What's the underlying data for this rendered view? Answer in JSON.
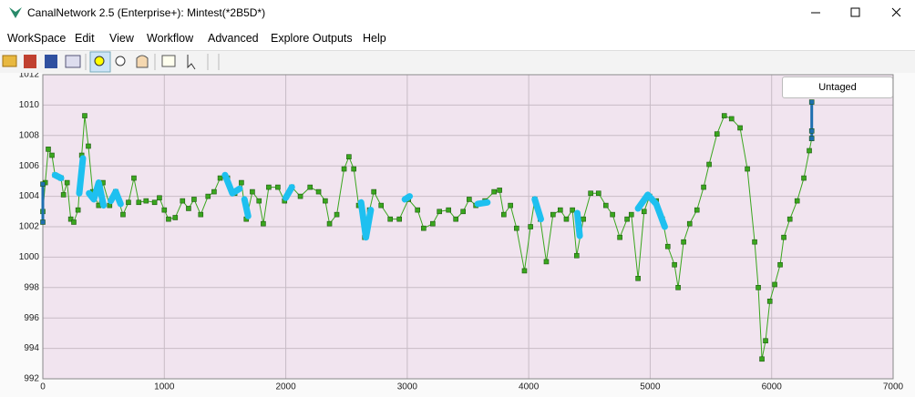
{
  "window": {
    "title": "CanalNetwork 2.5  (Enterprise+): Mintest(*2B5D*)"
  },
  "menu": [
    "WorkSpace",
    "Edit",
    "View",
    "Workflow",
    "Advanced",
    "Explore Outputs",
    "Help"
  ],
  "button": "Untaged",
  "chart_data": {
    "type": "line",
    "xlim": [
      0,
      7000
    ],
    "ylim": [
      992,
      1012
    ],
    "xticks": [
      0,
      1000,
      2000,
      3000,
      4000,
      5000,
      6000,
      7000
    ],
    "yticks": [
      992,
      994,
      996,
      998,
      1000,
      1002,
      1004,
      1006,
      1008,
      1010,
      1012
    ],
    "grid": true,
    "series": [
      {
        "color": "#3aa61e",
        "marker": "square",
        "x": [
          0,
          20,
          45,
          75,
          100,
          150,
          170,
          200,
          230,
          255,
          290,
          320,
          345,
          375,
          410,
          460,
          495,
          550,
          600,
          660,
          705,
          750,
          790,
          850,
          920,
          960,
          1000,
          1035,
          1090,
          1150,
          1200,
          1245,
          1300,
          1360,
          1410,
          1460,
          1520,
          1580,
          1635,
          1675,
          1725,
          1780,
          1815,
          1860,
          1935,
          1990,
          2050,
          2120,
          2200,
          2270,
          2325,
          2360,
          2420,
          2480,
          2520,
          2560,
          2600,
          2650,
          2690,
          2725,
          2785,
          2860,
          2935,
          3010,
          3085,
          3135,
          3210,
          3265,
          3340,
          3400,
          3460,
          3510,
          3565,
          3640,
          3715,
          3760,
          3795,
          3850,
          3900,
          3965,
          4015,
          4050,
          4095,
          4145,
          4200,
          4260,
          4310,
          4360,
          4395,
          4450,
          4510,
          4575,
          4635,
          4690,
          4750,
          4810,
          4845,
          4900,
          4950,
          4995,
          5050,
          5100,
          5145,
          5200,
          5230,
          5275,
          5325,
          5385,
          5440,
          5485,
          5550,
          5610,
          5670,
          5740,
          5800,
          5860,
          5890,
          5920,
          5950,
          5985,
          6025,
          6070,
          6100,
          6150,
          6210,
          6265,
          6310,
          6330
        ],
        "values": [
          1003,
          1004.9,
          1007.1,
          1006.7,
          1005.4,
          1005.2,
          1004.1,
          1004.9,
          1002.5,
          1002.3,
          1003.1,
          1006.7,
          1009.3,
          1007.3,
          1004.3,
          1003.4,
          1004.9,
          1003.4,
          1004.3,
          1002.8,
          1003.6,
          1005.2,
          1003.6,
          1003.7,
          1003.6,
          1003.9,
          1003.1,
          1002.5,
          1002.6,
          1003.7,
          1003.2,
          1003.8,
          1002.8,
          1004,
          1004.3,
          1005.2,
          1005.2,
          1004.2,
          1004.9,
          1002.5,
          1004.3,
          1003.7,
          1002.2,
          1004.6,
          1004.6,
          1003.7,
          1004.6,
          1004,
          1004.6,
          1004.3,
          1003.7,
          1002.2,
          1002.8,
          1005.8,
          1006.6,
          1005.8,
          1003.4,
          1001.3,
          1003.1,
          1004.3,
          1003.4,
          1002.5,
          1002.5,
          1003.8,
          1003.1,
          1001.9,
          1002.2,
          1003,
          1003.1,
          1002.5,
          1003,
          1003.8,
          1003.4,
          1003.7,
          1004.3,
          1004.4,
          1002.8,
          1003.4,
          1001.9,
          999.1,
          1002,
          1003.8,
          1002.5,
          999.7,
          1002.8,
          1003.1,
          1002.5,
          1003.1,
          1000.1,
          1002.5,
          1004.2,
          1004.2,
          1003.4,
          1002.8,
          1001.3,
          1002.5,
          1002.8,
          998.6,
          1003,
          1004,
          1003.7,
          1002.5,
          1000.7,
          999.5,
          998,
          1001,
          1002.2,
          1003.1,
          1004.6,
          1006.1,
          1008.1,
          1009.3,
          1009.1,
          1008.5,
          1005.8,
          1001,
          998,
          993.3,
          994.5,
          997.1,
          998.2,
          999.5,
          1001.3,
          1002.5,
          1003.7,
          1005.2,
          1007,
          1007.8
        ]
      },
      {
        "color": "#1ec0f0",
        "width": 7,
        "x": [
          100,
          150,
          150,
          300,
          330,
          330,
          380,
          420,
          460,
          500,
          500,
          560,
          600,
          640,
          640,
          1500,
          1560,
          1620,
          1620,
          1660,
          1690,
          1690,
          2000,
          2050,
          2050,
          2620,
          2660,
          2700,
          2700,
          2980,
          3020,
          3020,
          3580,
          3660,
          3660,
          4050,
          4100,
          4100,
          4400,
          4420,
          4420,
          4900,
          4980,
          5050,
          5120
        ],
        "values": [
          1005.4,
          1005.2,
          null,
          1004.2,
          1006.5,
          null,
          1004.2,
          1003.8,
          1004.9,
          1003.4,
          null,
          1003.7,
          1004.3,
          1003.5,
          null,
          1005.4,
          1004.2,
          1004.5,
          null,
          1003.8,
          1002.7,
          null,
          1003.9,
          1004.6,
          null,
          1003.6,
          1001.3,
          1003.1,
          null,
          1003.8,
          1004,
          null,
          1003.5,
          1003.6,
          null,
          1003.8,
          1002.5,
          null,
          1002.9,
          1001.4,
          null,
          1003.2,
          1004.1,
          1003.5,
          1002
        ]
      },
      {
        "color": "#1f6fb0",
        "marker": "square",
        "width": 3,
        "x": [
          0,
          0,
          0,
          6330,
          6330,
          6330
        ],
        "values": [
          1002.3,
          1004.8,
          null,
          1007.8,
          1008.3,
          1010.2
        ]
      }
    ]
  }
}
